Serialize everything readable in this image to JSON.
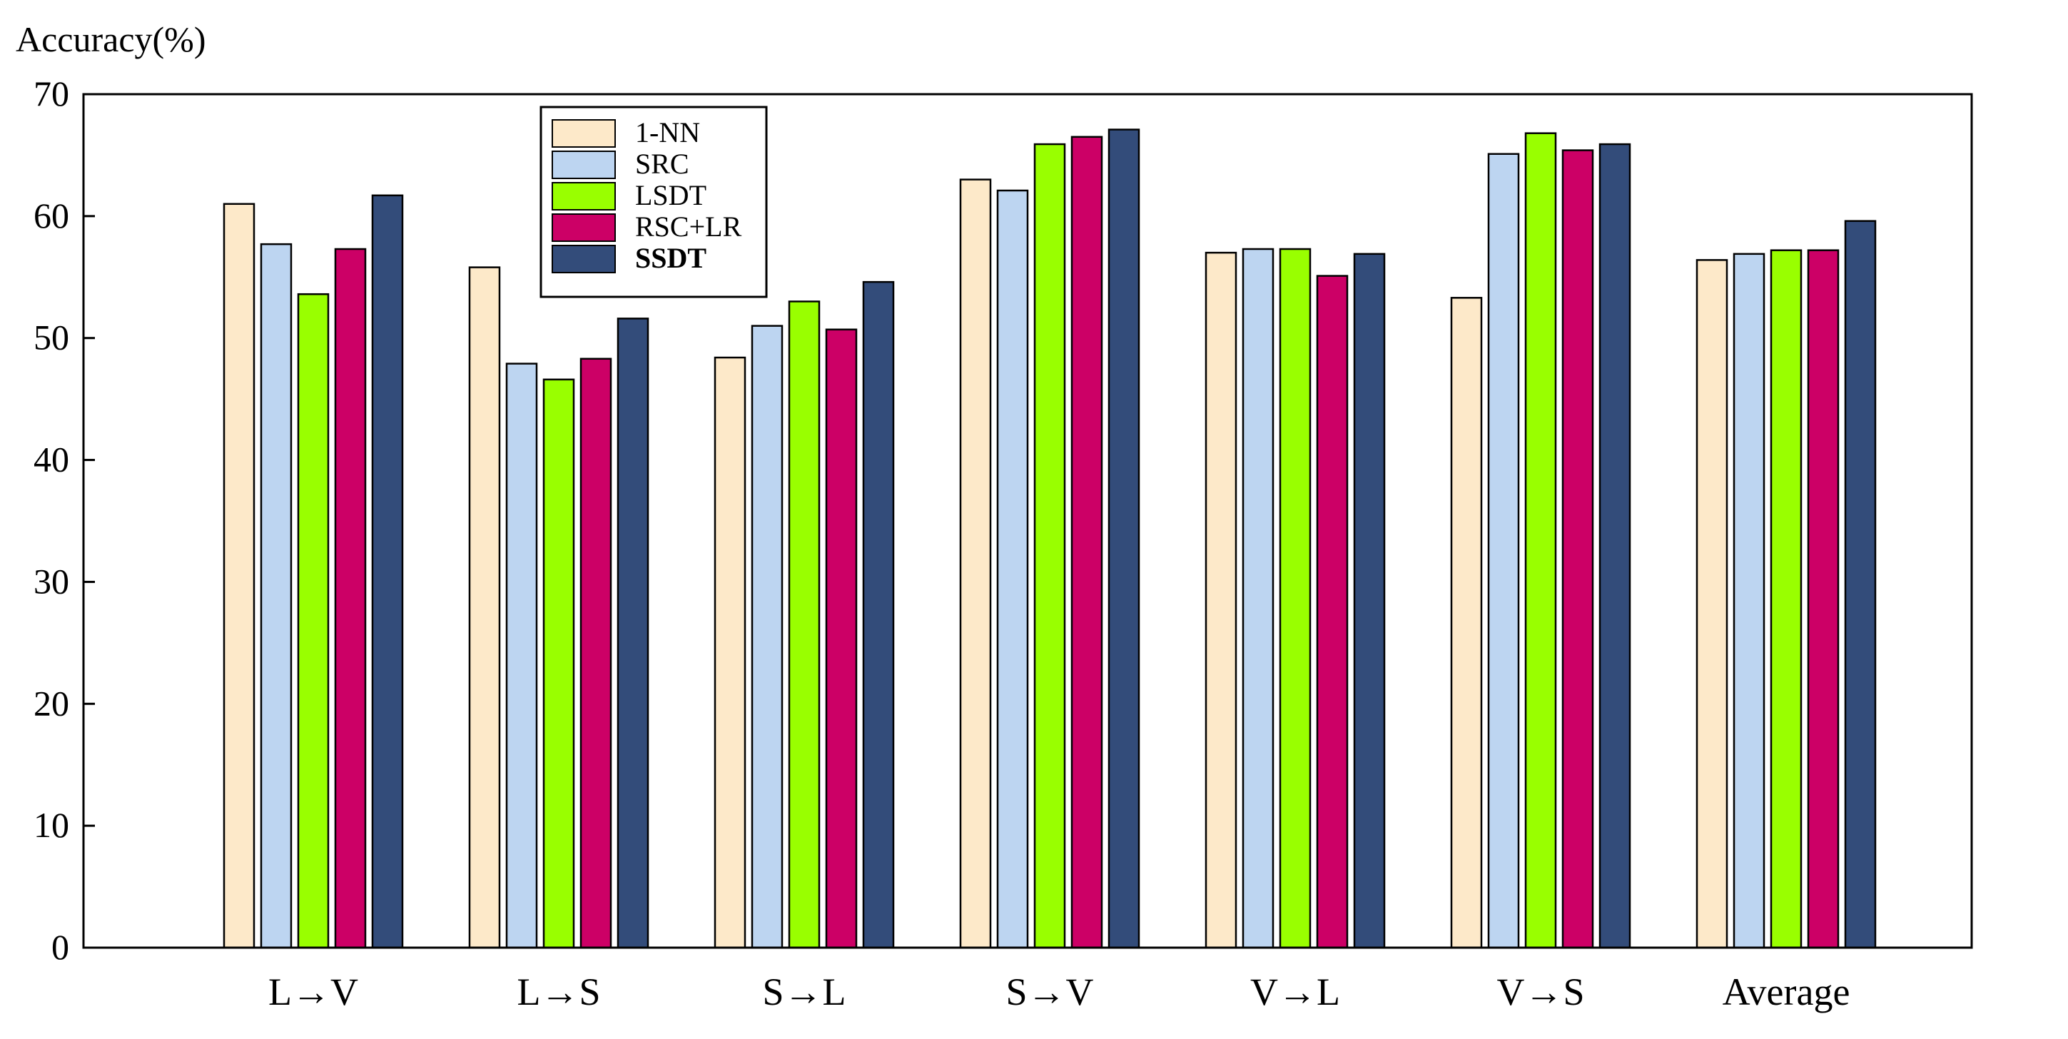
{
  "chart_data": {
    "type": "bar",
    "title": "",
    "xlabel": "",
    "ylabel": "Accuracy(%)",
    "ylim": [
      0,
      70
    ],
    "yticks": [
      0,
      10,
      20,
      30,
      40,
      50,
      60,
      70
    ],
    "grid": false,
    "legend_position": "top-left",
    "categories": [
      "L→V",
      "L→S",
      "S→L",
      "S→V",
      "V→L",
      "V→S",
      "Average"
    ],
    "series": [
      {
        "name": "1-NN",
        "color": "#FDE9C9",
        "bold": false,
        "values": [
          61.0,
          55.8,
          48.4,
          63.0,
          57.0,
          53.3,
          56.4
        ]
      },
      {
        "name": "SRC",
        "color": "#BDD5F1",
        "bold": false,
        "values": [
          57.7,
          47.9,
          51.0,
          62.1,
          57.3,
          65.1,
          56.9
        ]
      },
      {
        "name": "LSDT",
        "color": "#99FF00",
        "bold": false,
        "values": [
          53.6,
          46.6,
          53.0,
          65.9,
          57.3,
          66.8,
          57.2
        ]
      },
      {
        "name": "RSC+LR",
        "color": "#CC0066",
        "bold": false,
        "values": [
          57.3,
          48.3,
          50.7,
          66.5,
          55.1,
          65.4,
          57.2
        ]
      },
      {
        "name": "SSDT",
        "color": "#334C7A",
        "bold": true,
        "values": [
          61.7,
          51.6,
          54.6,
          67.1,
          56.9,
          65.9,
          59.6
        ]
      }
    ]
  }
}
